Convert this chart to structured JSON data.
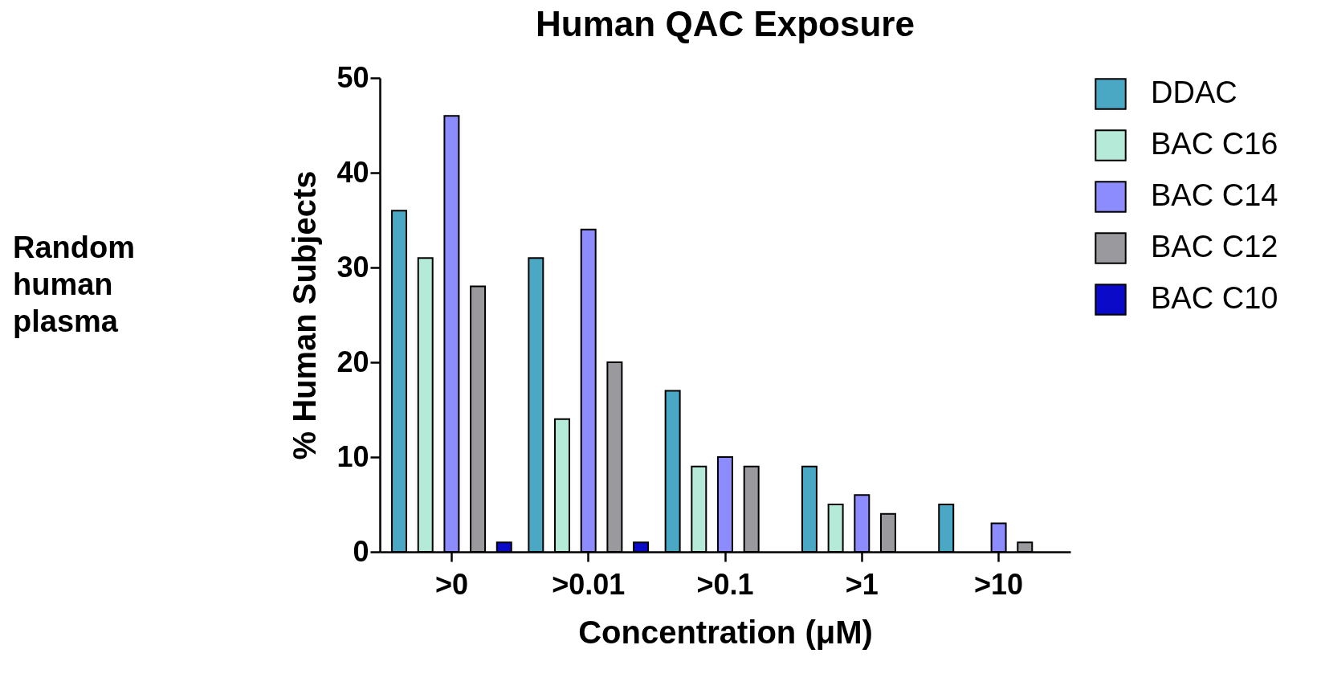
{
  "chart_data": {
    "type": "bar",
    "title": "Human QAC Exposure",
    "xlabel": "Concentration (μM)",
    "ylabel": "% Human Subjects",
    "annotations": [
      "Random human plasma"
    ],
    "categories": [
      ">0",
      ">0.01",
      ">0.1",
      ">1",
      ">10"
    ],
    "series": [
      {
        "name": "DDAC",
        "color": "#4aa8c4",
        "values": [
          36,
          31,
          17,
          9,
          5
        ]
      },
      {
        "name": "BAC C16",
        "color": "#b5ead8",
        "values": [
          31,
          14,
          9,
          5,
          0
        ]
      },
      {
        "name": "BAC C14",
        "color": "#8c8cff",
        "values": [
          46,
          34,
          10,
          6,
          3
        ]
      },
      {
        "name": "BAC C12",
        "color": "#9a9a9e",
        "values": [
          28,
          20,
          9,
          4,
          1
        ]
      },
      {
        "name": "BAC C10",
        "color": "#0a0ac8",
        "values": [
          1,
          1,
          0,
          0,
          0
        ]
      }
    ],
    "ylim": [
      0,
      50
    ],
    "yticks": [
      0,
      10,
      20,
      30,
      40,
      50
    ],
    "grid": false,
    "legend": "right"
  }
}
